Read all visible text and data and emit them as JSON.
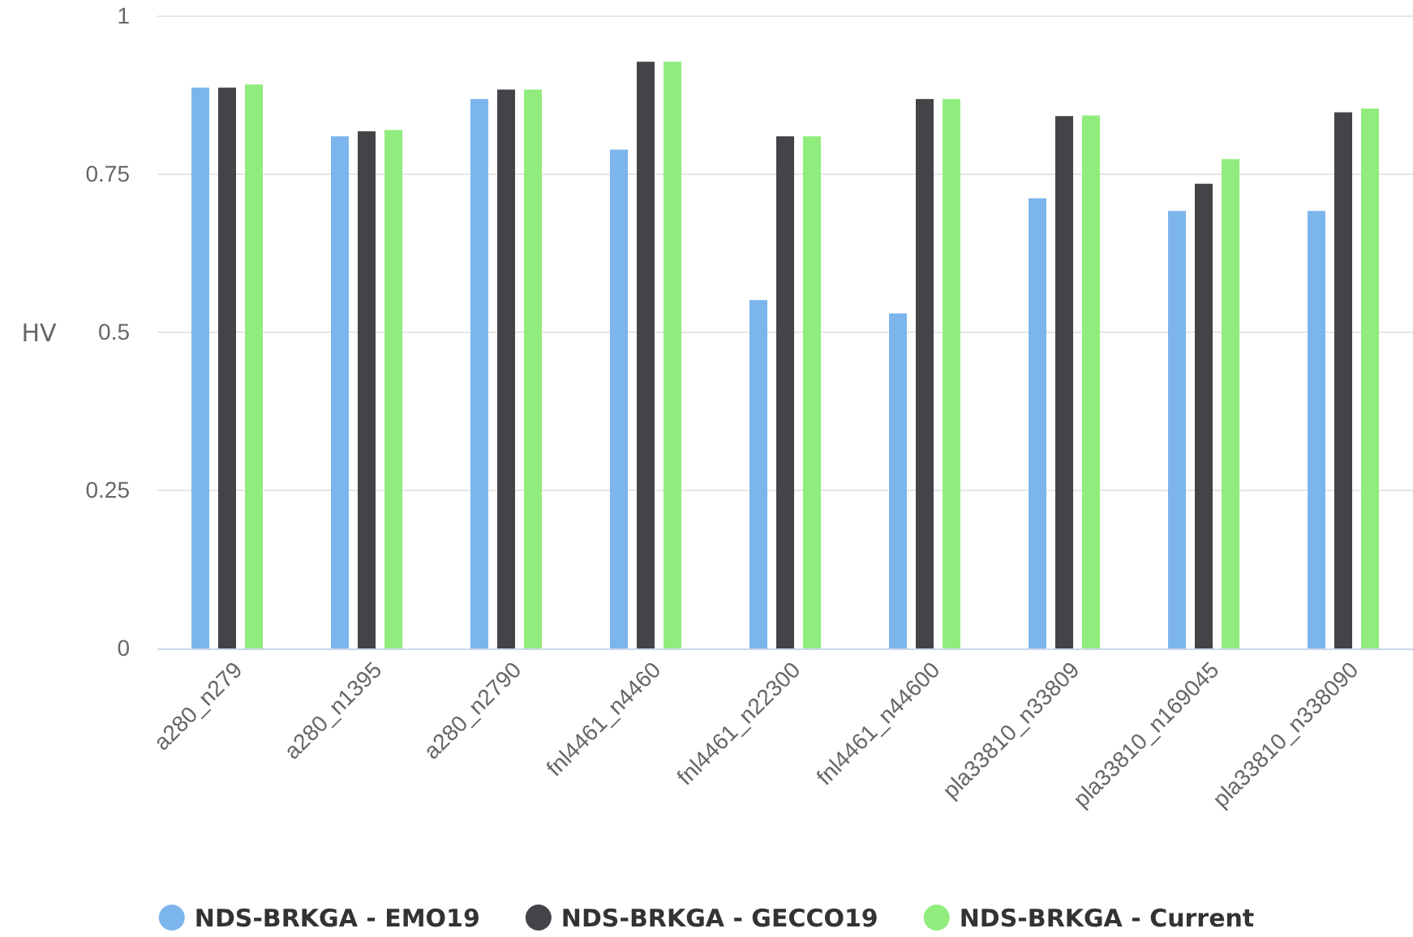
{
  "chart_data": {
    "type": "bar",
    "ylabel": "HV",
    "categories": [
      "a280_n279",
      "a280_n1395",
      "a280_n2790",
      "fnl4461_n4460",
      "fnl4461_n22300",
      "fnl4461_n44600",
      "pla33810_n33809",
      "pla33810_n169045",
      "pla33810_n338090"
    ],
    "series": [
      {
        "name": "NDS-BRKGA - EMO19",
        "color": "#7cb5ec",
        "values": [
          0.887,
          0.81,
          0.869,
          0.789,
          0.551,
          0.53,
          0.712,
          0.692,
          0.692
        ]
      },
      {
        "name": "NDS-BRKGA - GECCO19",
        "color": "#434348",
        "values": [
          0.887,
          0.818,
          0.884,
          0.928,
          0.81,
          0.869,
          0.842,
          0.735,
          0.848
        ]
      },
      {
        "name": "NDS-BRKGA - Current",
        "color": "#90ed7d",
        "values": [
          0.892,
          0.82,
          0.884,
          0.928,
          0.81,
          0.869,
          0.843,
          0.774,
          0.854
        ]
      }
    ],
    "ylim": [
      0,
      1
    ],
    "yticks": [
      0,
      0.25,
      0.5,
      0.75,
      1
    ],
    "grid": "y",
    "legend": "bottom"
  }
}
